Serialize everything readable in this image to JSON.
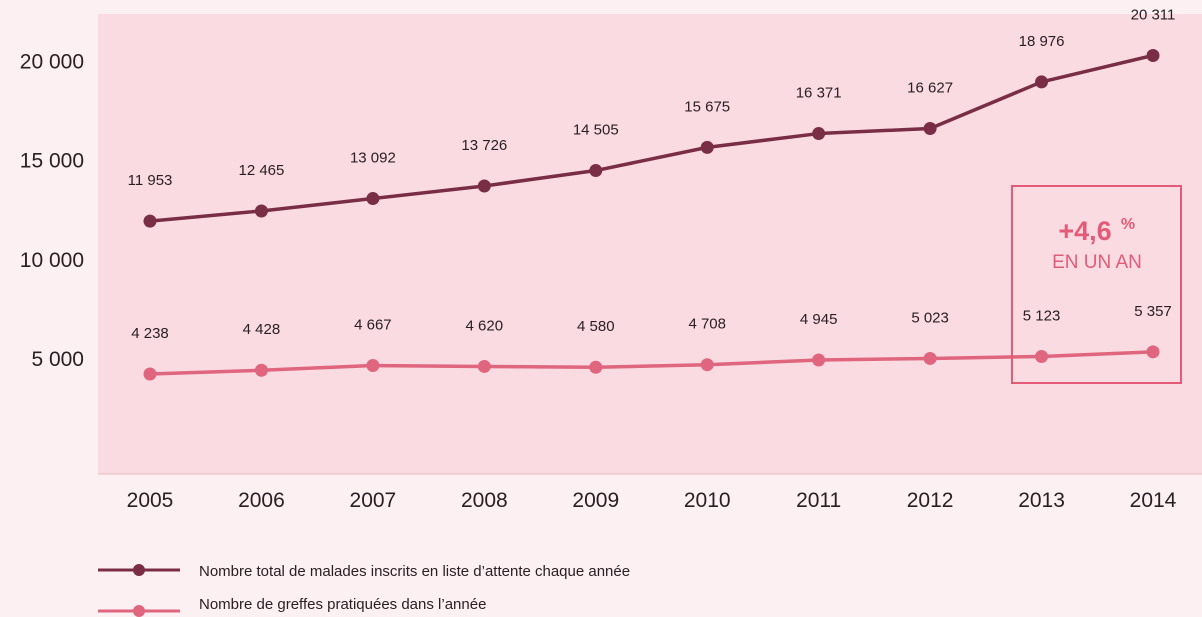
{
  "chart_data": {
    "type": "line",
    "categories": [
      "2005",
      "2006",
      "2007",
      "2008",
      "2009",
      "2010",
      "2011",
      "2012",
      "2013",
      "2014"
    ],
    "ylim": [
      0,
      22000
    ],
    "yticks": [
      "5 000",
      "10 000",
      "15 000",
      "20 000"
    ],
    "ytick_values": [
      5000,
      10000,
      15000,
      20000
    ],
    "grid": false,
    "legend_position": "bottom-left",
    "series": [
      {
        "name": "Nombre total de malades inscrits en liste d’attente chaque année",
        "color": "#7a2e45",
        "values": [
          11953,
          12465,
          13092,
          13726,
          14505,
          15675,
          16371,
          16627,
          18976,
          20311
        ],
        "labels": [
          "11 953",
          "12 465",
          "13 092",
          "13 726",
          "14 505",
          "15 675",
          "16 371",
          "16 627",
          "18 976",
          "20 311"
        ]
      },
      {
        "name": "Nombre de greffes pratiquées dans l’année",
        "color": "#e0657e",
        "values": [
          4238,
          4428,
          4667,
          4620,
          4580,
          4708,
          4945,
          5023,
          5123,
          5357
        ],
        "labels": [
          "4 238",
          "4 428",
          "4 667",
          "4 620",
          "4 580",
          "4 708",
          "4 945",
          "5 023",
          "5 123",
          "5 357"
        ]
      }
    ],
    "annotation": {
      "value": "+4,6",
      "unit": "%",
      "text": "EN UN AN",
      "color": "#e35b78"
    },
    "plot_background": "#fadbe2"
  }
}
